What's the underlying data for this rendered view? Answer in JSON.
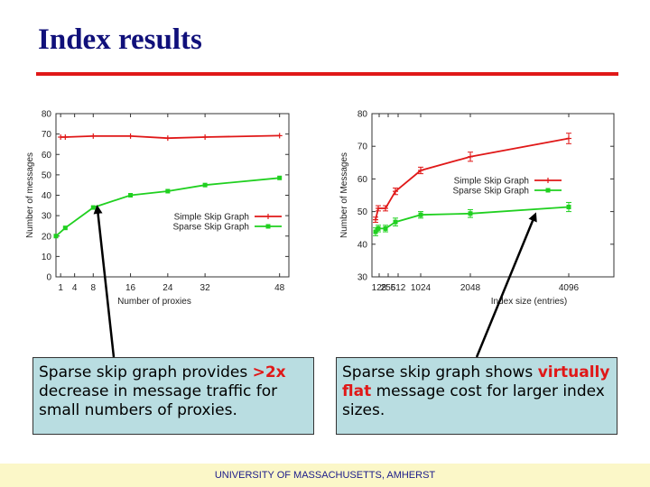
{
  "slide": {
    "title": "Index results",
    "footer": "UNIVERSITY OF MASSACHUSETTS, AMHERST"
  },
  "colors": {
    "title": "#10107a",
    "rule": "#e01818",
    "simple": "#e01818",
    "sparse": "#20d020",
    "note_bg": "#b9dde1",
    "footer_bg": "#fbf7c8"
  },
  "notes": {
    "left": {
      "pre": "Sparse skip graph provides ",
      "hl": ">2x",
      "post": " decrease in message traffic for small numbers of proxies."
    },
    "right": {
      "pre": "Sparse skip graph shows ",
      "hl": "virtually flat",
      "post": " message cost for larger index sizes."
    }
  },
  "chart_data": [
    {
      "type": "line",
      "xlabel": "Number of proxies",
      "ylabel": "Number of messages",
      "xlim": [
        0,
        50
      ],
      "ylim": [
        0,
        80
      ],
      "xticks": [
        1,
        4,
        8,
        16,
        24,
        32,
        48
      ],
      "yticks": [
        0,
        10,
        20,
        30,
        40,
        50,
        60,
        70,
        80
      ],
      "legend": "center-right",
      "series": [
        {
          "name": "Simple Skip Graph",
          "color": "#e01818",
          "x": [
            1,
            2,
            8,
            16,
            24,
            32,
            48
          ],
          "y": [
            68.5,
            68.5,
            69,
            69,
            68,
            68.5,
            69.2
          ]
        },
        {
          "name": "Sparse Skip Graph",
          "color": "#20d020",
          "x": [
            0,
            2,
            8,
            16,
            24,
            32,
            48
          ],
          "y": [
            20,
            24,
            34,
            40,
            42,
            45,
            48.5
          ]
        }
      ]
    },
    {
      "type": "line",
      "xlabel": "Index size (entries)",
      "ylabel": "Number of Messages",
      "xlim": [
        0,
        4400
      ],
      "ylim": [
        30,
        80
      ],
      "xticks": [
        128,
        256,
        512,
        1024,
        2048,
        4096
      ],
      "xticklabels": [
        "128",
        "256",
        "512",
        "1024",
        "2048",
        "4096"
      ],
      "yticks": [
        30,
        40,
        50,
        60,
        70,
        80
      ],
      "legend": "center-right",
      "series": [
        {
          "name": "Simple Skip Graph",
          "color": "#e01818",
          "x": [
            0,
            64,
            256,
            512,
            1024,
            2048,
            4096
          ],
          "y": [
            47.5,
            51,
            51,
            56.2,
            62.6,
            66.8,
            72.4
          ],
          "err": [
            0.8,
            0.8,
            0.8,
            1.0,
            1.0,
            1.4,
            1.6
          ]
        },
        {
          "name": "Sparse Skip Graph",
          "color": "#20d020",
          "x": [
            0,
            64,
            256,
            512,
            1024,
            2048,
            4096
          ],
          "y": [
            43.8,
            44.8,
            44.8,
            46.8,
            49,
            49.4,
            51.4
          ],
          "err": [
            1.2,
            1.0,
            1.0,
            1.2,
            1.0,
            1.2,
            1.4
          ]
        }
      ]
    }
  ]
}
